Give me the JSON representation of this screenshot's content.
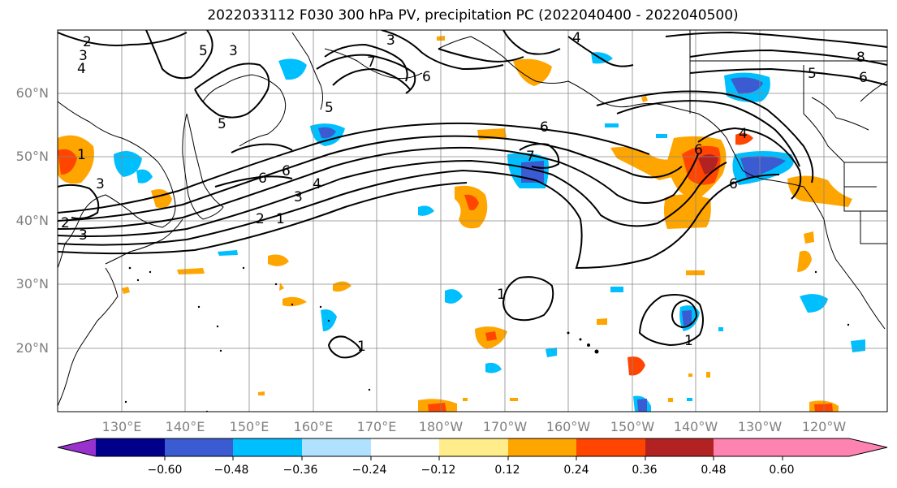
{
  "title": "2022033112 F030 300 hPa PV, precipitation PC (2022040400 - 2022040500)",
  "map": {
    "lat_labels": [
      "60°N",
      "50°N",
      "40°N",
      "30°N",
      "20°N"
    ],
    "lon_labels": [
      "130°E",
      "140°E",
      "150°E",
      "160°E",
      "170°E",
      "180°W",
      "170°W",
      "160°W",
      "150°W",
      "140°W",
      "130°W",
      "120°W"
    ],
    "pv_contour_labels": [
      "2",
      "3",
      "4",
      "5",
      "3",
      "6",
      "7",
      "5",
      "6",
      "4",
      "8",
      "5",
      "6",
      "3",
      "6",
      "5",
      "6",
      "7",
      "1",
      "2",
      "3",
      "6",
      "6",
      "4",
      "3",
      "2",
      "1",
      "1",
      "1",
      "1",
      "3",
      "4"
    ]
  },
  "colorbar": {
    "colors": [
      "#9932cc",
      "#00008b",
      "#3a5bd1",
      "#00bfff",
      "#b0e2ff",
      "#ffffff",
      "#ffec8b",
      "#ffa500",
      "#ff4500",
      "#b22222",
      "#ff83b0",
      "#ff83b0"
    ],
    "under_color": "#9932cc",
    "over_color": "#ff83b0",
    "tick_labels": [
      "−0.60",
      "−0.48",
      "−0.36",
      "−0.24",
      "−0.12",
      "0.12",
      "0.24",
      "0.36",
      "0.48",
      "0.60"
    ]
  }
}
